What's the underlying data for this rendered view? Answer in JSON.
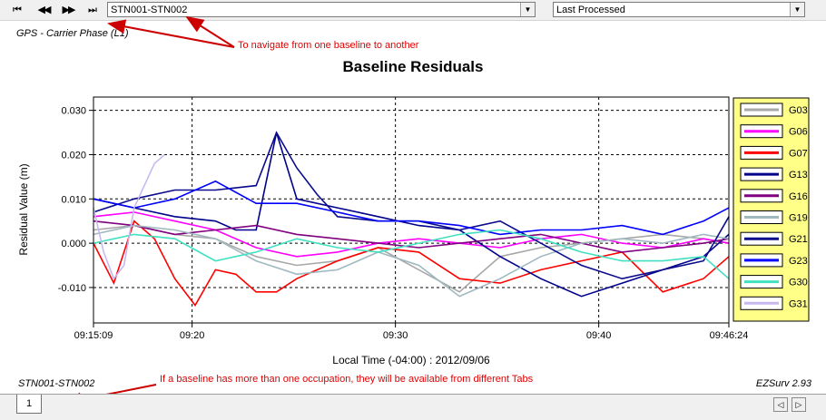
{
  "toolbar": {
    "nav_first": "⏮",
    "nav_prev": "◀◀",
    "nav_next": "▶▶",
    "nav_last": "⏭",
    "baseline_select": "STN001-STN002",
    "process_select": "Last Processed"
  },
  "gps_label": "GPS - Carrier Phase (L1)",
  "annotations": {
    "nav_note": "To navigate from one baseline to another",
    "tab_note": "If a baseline has more than one occupation, they will be available from different Tabs"
  },
  "footer": {
    "baseline": "STN001-STN002",
    "version": "EZSurv 2.93"
  },
  "tabs": [
    "1"
  ],
  "colors": {
    "annotation": "#e00000",
    "legend_bg": "#ffff88"
  },
  "chart_data": {
    "type": "line",
    "title": "Baseline Residuals",
    "xlabel": "Local Time (-04:00) : 2012/09/06",
    "ylabel": "Residual Value (m)",
    "x_start_label": "09:15:09",
    "x_end_label": "09:46:24",
    "xtick_labels": [
      "09:15:09",
      "09:20",
      "09:30",
      "09:40",
      "09:46:24"
    ],
    "xtick_minutes": [
      0,
      4.85,
      14.85,
      24.85,
      31.25
    ],
    "ytick_labels": [
      "0.030",
      "0.020",
      "0.010",
      "0.000",
      "-0.010"
    ],
    "ytick_values": [
      0.03,
      0.02,
      0.01,
      0.0,
      -0.01
    ],
    "ylim": [
      -0.018,
      0.033
    ],
    "grid": true,
    "legend_position": "right",
    "series": [
      {
        "name": "G03",
        "color": "#a8a8a8",
        "x": [
          0,
          2,
          4,
          6,
          8,
          10,
          12,
          14,
          16,
          18,
          20,
          22,
          24,
          26,
          28,
          30,
          31.25
        ],
        "values": [
          0.003,
          0.004,
          0.002,
          0.001,
          -0.003,
          -0.005,
          -0.004,
          -0.001,
          -0.006,
          -0.011,
          -0.003,
          -0.001,
          0.0,
          0.001,
          0.002,
          0.001,
          0.0
        ]
      },
      {
        "name": "G06",
        "color": "#ff00ff",
        "x": [
          0,
          2,
          4,
          6,
          8,
          10,
          12,
          14,
          16,
          18,
          20,
          22,
          24,
          26,
          28,
          30,
          31.25
        ],
        "values": [
          0.006,
          0.007,
          0.005,
          0.003,
          -0.001,
          -0.003,
          -0.002,
          0.0,
          0.001,
          0.0,
          -0.001,
          0.001,
          0.002,
          0.0,
          -0.001,
          0.001,
          0.0
        ]
      },
      {
        "name": "G07",
        "color": "#ff0000",
        "x": [
          0,
          1,
          2,
          3,
          4,
          5,
          6,
          7,
          8,
          9,
          10,
          12,
          14,
          16,
          18,
          20,
          22,
          24,
          26,
          28,
          30,
          31.25
        ],
        "values": [
          0.0,
          -0.009,
          0.005,
          0.001,
          -0.008,
          -0.014,
          -0.006,
          -0.007,
          -0.011,
          -0.011,
          -0.008,
          -0.004,
          -0.001,
          -0.002,
          -0.008,
          -0.009,
          -0.006,
          -0.004,
          -0.002,
          -0.011,
          -0.008,
          -0.003
        ]
      },
      {
        "name": "G13",
        "color": "#00008b",
        "x": [
          0,
          2,
          4,
          6,
          7,
          8,
          9,
          10,
          12,
          14,
          16,
          18,
          20,
          22,
          24,
          26,
          28,
          30,
          31.25
        ],
        "values": [
          0.01,
          0.008,
          0.006,
          0.005,
          0.003,
          0.003,
          0.025,
          0.01,
          0.008,
          0.006,
          0.004,
          0.003,
          -0.003,
          -0.008,
          -0.012,
          -0.009,
          -0.006,
          -0.003,
          0.002
        ]
      },
      {
        "name": "G16",
        "color": "#800080",
        "x": [
          0,
          2,
          4,
          6,
          8,
          10,
          12,
          14,
          16,
          18,
          20,
          22,
          24,
          26,
          28,
          30,
          31.25
        ],
        "values": [
          0.005,
          0.004,
          0.002,
          0.003,
          0.004,
          0.002,
          0.001,
          0.0,
          -0.001,
          0.0,
          0.001,
          0.002,
          0.0,
          -0.002,
          -0.001,
          0.0,
          0.001
        ]
      },
      {
        "name": "G19",
        "color": "#a0b8c0",
        "x": [
          0,
          2,
          4,
          6,
          8,
          10,
          12,
          14,
          16,
          18,
          20,
          22,
          24,
          26,
          28,
          30,
          31.25
        ],
        "values": [
          0.002,
          0.004,
          0.003,
          0.001,
          -0.004,
          -0.007,
          -0.006,
          -0.002,
          -0.005,
          -0.012,
          -0.008,
          -0.003,
          0.0,
          0.001,
          0.0,
          0.002,
          0.001
        ]
      },
      {
        "name": "G21",
        "color": "#0a0a8c",
        "x": [
          0,
          2,
          4,
          6,
          8,
          9,
          10,
          11,
          12,
          14,
          16,
          18,
          20,
          22,
          24,
          26,
          28,
          30,
          31.25
        ],
        "values": [
          0.007,
          0.01,
          0.012,
          0.012,
          0.013,
          0.025,
          0.017,
          0.011,
          0.006,
          0.005,
          0.005,
          0.003,
          0.005,
          0.0,
          -0.005,
          -0.008,
          -0.006,
          -0.004,
          0.006
        ]
      },
      {
        "name": "G23",
        "color": "#0000ff",
        "x": [
          0,
          2,
          4,
          6,
          8,
          10,
          12,
          14,
          16,
          18,
          20,
          22,
          24,
          26,
          28,
          30,
          31.25
        ],
        "values": [
          0.01,
          0.008,
          0.01,
          0.014,
          0.009,
          0.009,
          0.007,
          0.005,
          0.005,
          0.004,
          0.002,
          0.003,
          0.003,
          0.004,
          0.002,
          0.005,
          0.008
        ]
      },
      {
        "name": "G30",
        "color": "#40e0c0",
        "x": [
          0,
          2,
          4,
          6,
          8,
          10,
          12,
          14,
          16,
          18,
          20,
          22,
          24,
          26,
          28,
          30,
          31.25
        ],
        "values": [
          0.0,
          0.002,
          0.001,
          -0.004,
          -0.002,
          0.001,
          -0.001,
          -0.002,
          0.0,
          0.002,
          0.003,
          0.001,
          -0.002,
          -0.004,
          -0.004,
          -0.003,
          -0.008
        ]
      },
      {
        "name": "G31",
        "color": "#c8b8f0",
        "x": [
          0,
          0.5,
          1,
          1.5,
          2,
          2.5,
          3,
          3.5
        ],
        "values": [
          0.008,
          -0.002,
          -0.008,
          -0.005,
          0.008,
          0.013,
          0.018,
          0.02
        ]
      }
    ]
  }
}
